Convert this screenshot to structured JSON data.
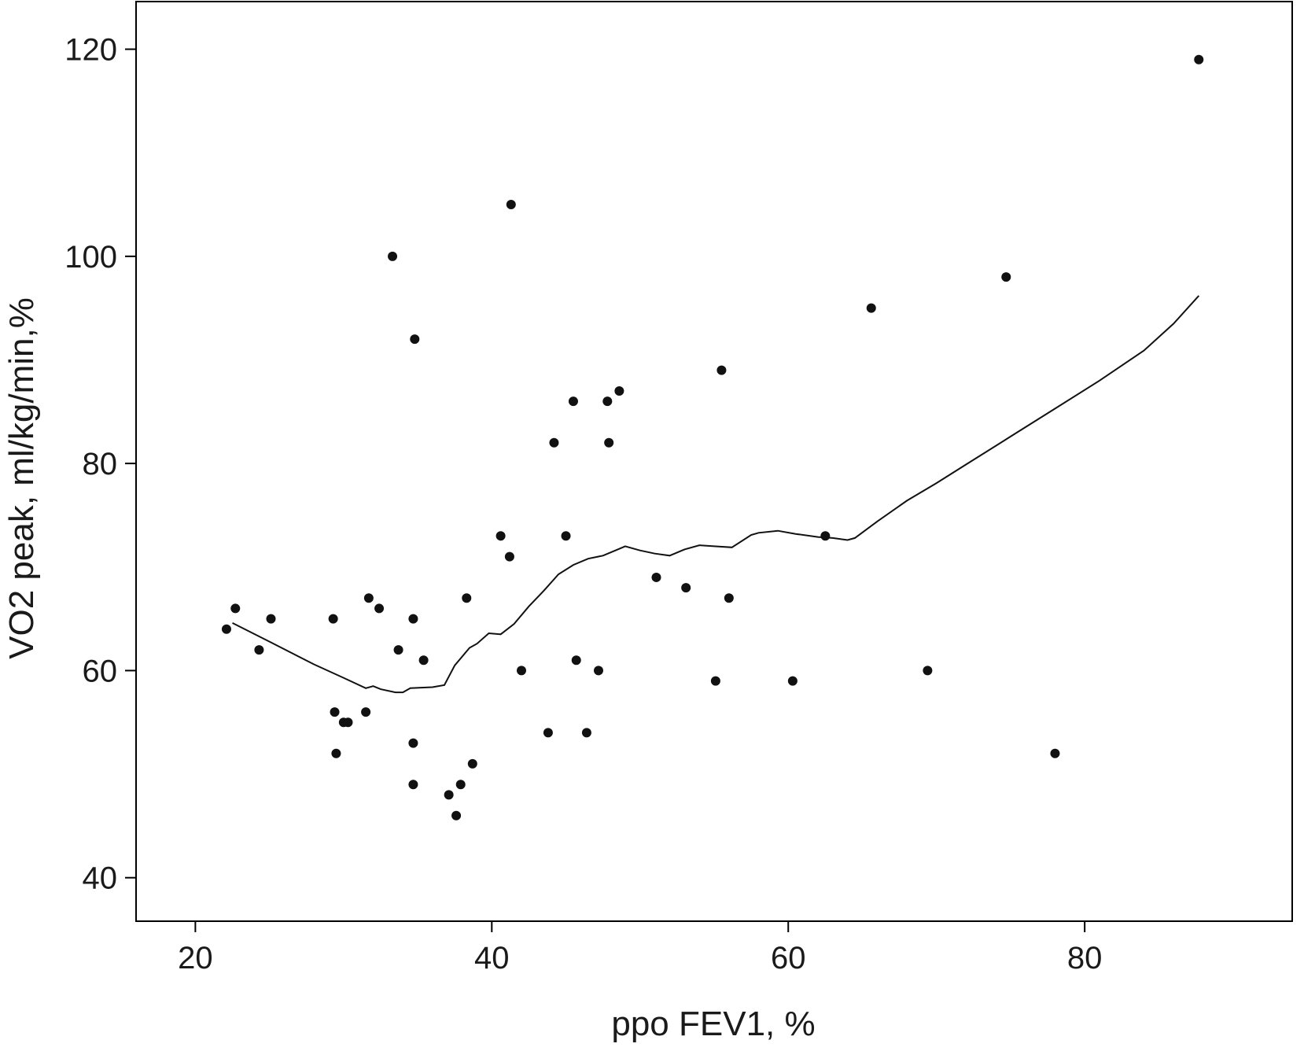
{
  "chart_data": {
    "type": "scatter",
    "title": "",
    "xlabel": "ppo FEV1, %",
    "ylabel": "VO2 peak, ml/kg/min,%",
    "xlim": [
      16,
      94
    ],
    "ylim": [
      35.8,
      124.6
    ],
    "xticks": [
      20,
      40,
      60,
      80
    ],
    "yticks": [
      40,
      60,
      80,
      100,
      120
    ],
    "grid": false,
    "legend": "none",
    "colors": {
      "points": "#111111",
      "line": "#111111",
      "axis": "#000000"
    },
    "points": [
      {
        "x": 22.1,
        "y": 64
      },
      {
        "x": 22.7,
        "y": 66
      },
      {
        "x": 24.3,
        "y": 62
      },
      {
        "x": 25.1,
        "y": 65
      },
      {
        "x": 29.3,
        "y": 65
      },
      {
        "x": 29.4,
        "y": 56
      },
      {
        "x": 29.5,
        "y": 52
      },
      {
        "x": 30.0,
        "y": 55
      },
      {
        "x": 30.3,
        "y": 55
      },
      {
        "x": 31.5,
        "y": 56
      },
      {
        "x": 31.7,
        "y": 67
      },
      {
        "x": 32.4,
        "y": 66
      },
      {
        "x": 33.3,
        "y": 100
      },
      {
        "x": 33.7,
        "y": 62
      },
      {
        "x": 34.7,
        "y": 65
      },
      {
        "x": 34.7,
        "y": 53
      },
      {
        "x": 34.7,
        "y": 49
      },
      {
        "x": 34.8,
        "y": 92
      },
      {
        "x": 35.4,
        "y": 61
      },
      {
        "x": 37.1,
        "y": 48
      },
      {
        "x": 37.6,
        "y": 46
      },
      {
        "x": 37.9,
        "y": 49
      },
      {
        "x": 38.3,
        "y": 67
      },
      {
        "x": 38.7,
        "y": 51
      },
      {
        "x": 40.6,
        "y": 73
      },
      {
        "x": 41.2,
        "y": 71
      },
      {
        "x": 41.3,
        "y": 105
      },
      {
        "x": 42.0,
        "y": 60
      },
      {
        "x": 43.8,
        "y": 54
      },
      {
        "x": 44.2,
        "y": 82
      },
      {
        "x": 45.0,
        "y": 73
      },
      {
        "x": 45.5,
        "y": 86
      },
      {
        "x": 45.7,
        "y": 61
      },
      {
        "x": 46.4,
        "y": 54
      },
      {
        "x": 47.2,
        "y": 60
      },
      {
        "x": 47.8,
        "y": 86
      },
      {
        "x": 47.9,
        "y": 82
      },
      {
        "x": 48.6,
        "y": 87
      },
      {
        "x": 51.1,
        "y": 69
      },
      {
        "x": 53.1,
        "y": 68
      },
      {
        "x": 55.1,
        "y": 59
      },
      {
        "x": 55.5,
        "y": 89
      },
      {
        "x": 56.0,
        "y": 67
      },
      {
        "x": 60.3,
        "y": 59
      },
      {
        "x": 62.5,
        "y": 73
      },
      {
        "x": 65.6,
        "y": 95
      },
      {
        "x": 69.4,
        "y": 60
      },
      {
        "x": 74.7,
        "y": 98
      },
      {
        "x": 78.0,
        "y": 52
      },
      {
        "x": 87.7,
        "y": 119
      }
    ],
    "smooth_line": [
      {
        "x": 22.5,
        "y": 64.6
      },
      {
        "x": 25.0,
        "y": 62.8
      },
      {
        "x": 28.0,
        "y": 60.6
      },
      {
        "x": 30.0,
        "y": 59.3
      },
      {
        "x": 31.5,
        "y": 58.3
      },
      {
        "x": 32.0,
        "y": 58.5
      },
      {
        "x": 32.5,
        "y": 58.2
      },
      {
        "x": 33.5,
        "y": 57.9
      },
      {
        "x": 34.0,
        "y": 57.9
      },
      {
        "x": 34.5,
        "y": 58.3
      },
      {
        "x": 36.0,
        "y": 58.4
      },
      {
        "x": 36.8,
        "y": 58.6
      },
      {
        "x": 37.5,
        "y": 60.5
      },
      {
        "x": 38.5,
        "y": 62.2
      },
      {
        "x": 39.0,
        "y": 62.6
      },
      {
        "x": 39.8,
        "y": 63.6
      },
      {
        "x": 40.6,
        "y": 63.5
      },
      {
        "x": 41.5,
        "y": 64.5
      },
      {
        "x": 42.5,
        "y": 66.2
      },
      {
        "x": 43.5,
        "y": 67.7
      },
      {
        "x": 44.5,
        "y": 69.3
      },
      {
        "x": 45.5,
        "y": 70.2
      },
      {
        "x": 46.5,
        "y": 70.8
      },
      {
        "x": 47.5,
        "y": 71.1
      },
      {
        "x": 48.5,
        "y": 71.7
      },
      {
        "x": 49.0,
        "y": 72.0
      },
      {
        "x": 50.0,
        "y": 71.6
      },
      {
        "x": 51.0,
        "y": 71.3
      },
      {
        "x": 52.0,
        "y": 71.1
      },
      {
        "x": 53.0,
        "y": 71.7
      },
      {
        "x": 54.0,
        "y": 72.1
      },
      {
        "x": 55.0,
        "y": 72.0
      },
      {
        "x": 56.2,
        "y": 71.9
      },
      {
        "x": 57.5,
        "y": 73.1
      },
      {
        "x": 58.0,
        "y": 73.3
      },
      {
        "x": 59.3,
        "y": 73.5
      },
      {
        "x": 60.5,
        "y": 73.2
      },
      {
        "x": 62.0,
        "y": 72.9
      },
      {
        "x": 63.0,
        "y": 72.8
      },
      {
        "x": 64.0,
        "y": 72.6
      },
      {
        "x": 64.5,
        "y": 72.8
      },
      {
        "x": 66.0,
        "y": 74.4
      },
      {
        "x": 68.0,
        "y": 76.4
      },
      {
        "x": 70.0,
        "y": 78.1
      },
      {
        "x": 72.0,
        "y": 79.9
      },
      {
        "x": 75.0,
        "y": 82.6
      },
      {
        "x": 78.0,
        "y": 85.3
      },
      {
        "x": 81.0,
        "y": 88.0
      },
      {
        "x": 84.0,
        "y": 90.9
      },
      {
        "x": 86.0,
        "y": 93.5
      },
      {
        "x": 87.7,
        "y": 96.2
      }
    ]
  }
}
